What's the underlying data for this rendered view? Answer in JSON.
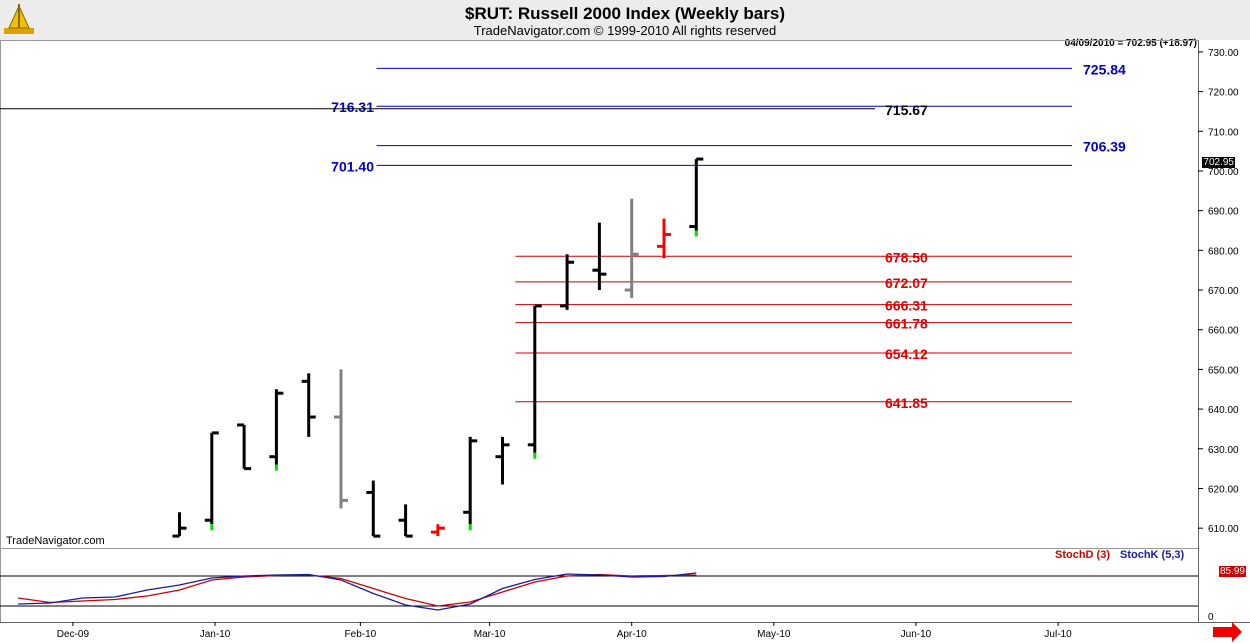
{
  "header": {
    "title": "$RUT:  Russell 2000 Index  (Weekly bars)",
    "subtitle": "TradeNavigator.com © 1999-2010 All rights reserved"
  },
  "readout": "04/09/2010 = 702.95 (+18.97)",
  "watermark": "TradeNavigator.com",
  "last_price_label": "702.95",
  "stoch_value_label": "85.99",
  "colors": {
    "up": "#000000",
    "gray": "#808080",
    "red": "#ff0000",
    "green": "#00dd00",
    "blue_line": "#0000cc",
    "red_line": "#cc0000",
    "stochD": "#d00000",
    "stochK": "#1a1aa8"
  },
  "chart_data": {
    "type": "bar",
    "title": "$RUT:  Russell 2000 Index  (Weekly bars)",
    "price_axis": {
      "ylim": [
        605,
        733
      ],
      "ticks": [
        "730.00",
        "720.00",
        "710.00",
        "700.00",
        "690.00",
        "680.00",
        "670.00",
        "660.00",
        "650.00",
        "640.00",
        "630.00",
        "620.00",
        "610.00"
      ]
    },
    "date_axis": {
      "labels": [
        {
          "label": "Dec-09",
          "week": 1.7
        },
        {
          "label": "Jan-10",
          "week": 6.1
        },
        {
          "label": "Feb-10",
          "week": 10.6
        },
        {
          "label": "Mar-10",
          "week": 14.6
        },
        {
          "label": "Apr-10",
          "week": 19.0
        },
        {
          "label": "May-10",
          "week": 23.4
        },
        {
          "label": "Jun-10",
          "week": 27.8
        },
        {
          "label": "Jul-10",
          "week": 32.2
        }
      ]
    },
    "bars": [
      {
        "week": 5.0,
        "open": 608,
        "high": 614,
        "low": 608,
        "close": 610,
        "color": "black"
      },
      {
        "week": 6.0,
        "open": 612,
        "high": 634,
        "low": 611,
        "close": 634,
        "color": "black",
        "mark": "green"
      },
      {
        "week": 7.0,
        "open": 636,
        "high": 636,
        "low": 625,
        "close": 625,
        "color": "black"
      },
      {
        "week": 8.0,
        "open": 628,
        "high": 645,
        "low": 626,
        "close": 644,
        "color": "black",
        "mark": "green"
      },
      {
        "week": 9.0,
        "open": 647,
        "high": 649,
        "low": 633,
        "close": 638,
        "color": "black"
      },
      {
        "week": 10.0,
        "open": 638,
        "high": 650,
        "low": 615,
        "close": 617,
        "color": "gray"
      },
      {
        "week": 11.0,
        "open": 619,
        "high": 622,
        "low": 608,
        "close": 608,
        "color": "black"
      },
      {
        "week": 12.0,
        "open": 612,
        "high": 616,
        "low": 608,
        "close": 608,
        "color": "black"
      },
      {
        "week": 13.0,
        "open": 609,
        "high": 611,
        "low": 608,
        "close": 610,
        "color": "red"
      },
      {
        "week": 14.0,
        "open": 614,
        "high": 633,
        "low": 611,
        "close": 632,
        "color": "black",
        "mark": "green"
      },
      {
        "week": 15.0,
        "open": 628,
        "high": 633,
        "low": 621,
        "close": 631,
        "color": "black"
      },
      {
        "week": 16.0,
        "open": 631,
        "high": 666,
        "low": 629,
        "close": 666,
        "color": "black",
        "mark": "green"
      },
      {
        "week": 17.0,
        "open": 666,
        "high": 679,
        "low": 665,
        "close": 677,
        "color": "black"
      },
      {
        "week": 18.0,
        "open": 675,
        "high": 687,
        "low": 670,
        "close": 674,
        "color": "black"
      },
      {
        "week": 19.0,
        "open": 670,
        "high": 693,
        "low": 668,
        "close": 679,
        "color": "gray"
      },
      {
        "week": 20.0,
        "open": 681,
        "high": 688,
        "low": 678,
        "close": 684,
        "color": "red"
      },
      {
        "week": 21.0,
        "open": 686,
        "high": 703,
        "low": 685,
        "close": 703,
        "color": "black",
        "mark": "green"
      }
    ],
    "levels": [
      {
        "value": 725.84,
        "label": "725.84",
        "color": "blue",
        "side": "right",
        "from_week": 11.1
      },
      {
        "value": 716.31,
        "label": "716.31",
        "color": "blue",
        "side": "left",
        "from_week": 11.1
      },
      {
        "value": 715.67,
        "label": "715.67",
        "color": "black",
        "side": "right",
        "from_week": 0
      },
      {
        "value": 706.39,
        "label": "706.39",
        "color": "blue",
        "side": "right",
        "from_week": 11.1
      },
      {
        "value": 701.4,
        "label": "701.40",
        "color": "blue",
        "side": "left",
        "from_week": 11.1
      },
      {
        "value": 678.5,
        "label": "678.50",
        "color": "red",
        "side": "right",
        "from_week": 15.4
      },
      {
        "value": 672.07,
        "label": "672.07",
        "color": "red",
        "side": "right",
        "from_week": 15.4
      },
      {
        "value": 666.31,
        "label": "666.31",
        "color": "red",
        "side": "right",
        "from_week": 15.4
      },
      {
        "value": 661.78,
        "label": "661.78",
        "color": "red",
        "side": "right",
        "from_week": 15.4
      },
      {
        "value": 654.12,
        "label": "654.12",
        "color": "red",
        "side": "right",
        "from_week": 15.4
      },
      {
        "value": 641.85,
        "label": "641.85",
        "color": "red",
        "side": "right",
        "from_week": 15.4
      }
    ],
    "stochastic": {
      "ylim": [
        0,
        100
      ],
      "ticks": [
        "0"
      ],
      "ref_lines": [
        20,
        80
      ],
      "series": [
        {
          "name": "StochD (3)",
          "x": [
            0,
            1,
            2,
            3,
            4,
            5,
            6,
            7,
            8,
            9,
            10,
            11,
            12,
            13,
            14,
            15,
            16,
            17,
            18,
            19,
            20,
            21
          ],
          "values": [
            36,
            27,
            30,
            33,
            40,
            52,
            72,
            78,
            81,
            82,
            75,
            55,
            35,
            20,
            28,
            48,
            68,
            80,
            83,
            80,
            81,
            82
          ]
        },
        {
          "name": "StochK (5,3)",
          "x": [
            0,
            1,
            2,
            3,
            4,
            5,
            6,
            7,
            8,
            9,
            10,
            11,
            12,
            13,
            14,
            15,
            16,
            17,
            18,
            19,
            20,
            21
          ],
          "values": [
            24,
            26,
            36,
            38,
            52,
            62,
            76,
            80,
            82,
            83,
            72,
            45,
            22,
            12,
            24,
            55,
            73,
            84,
            82,
            78,
            79,
            86
          ]
        }
      ]
    }
  }
}
